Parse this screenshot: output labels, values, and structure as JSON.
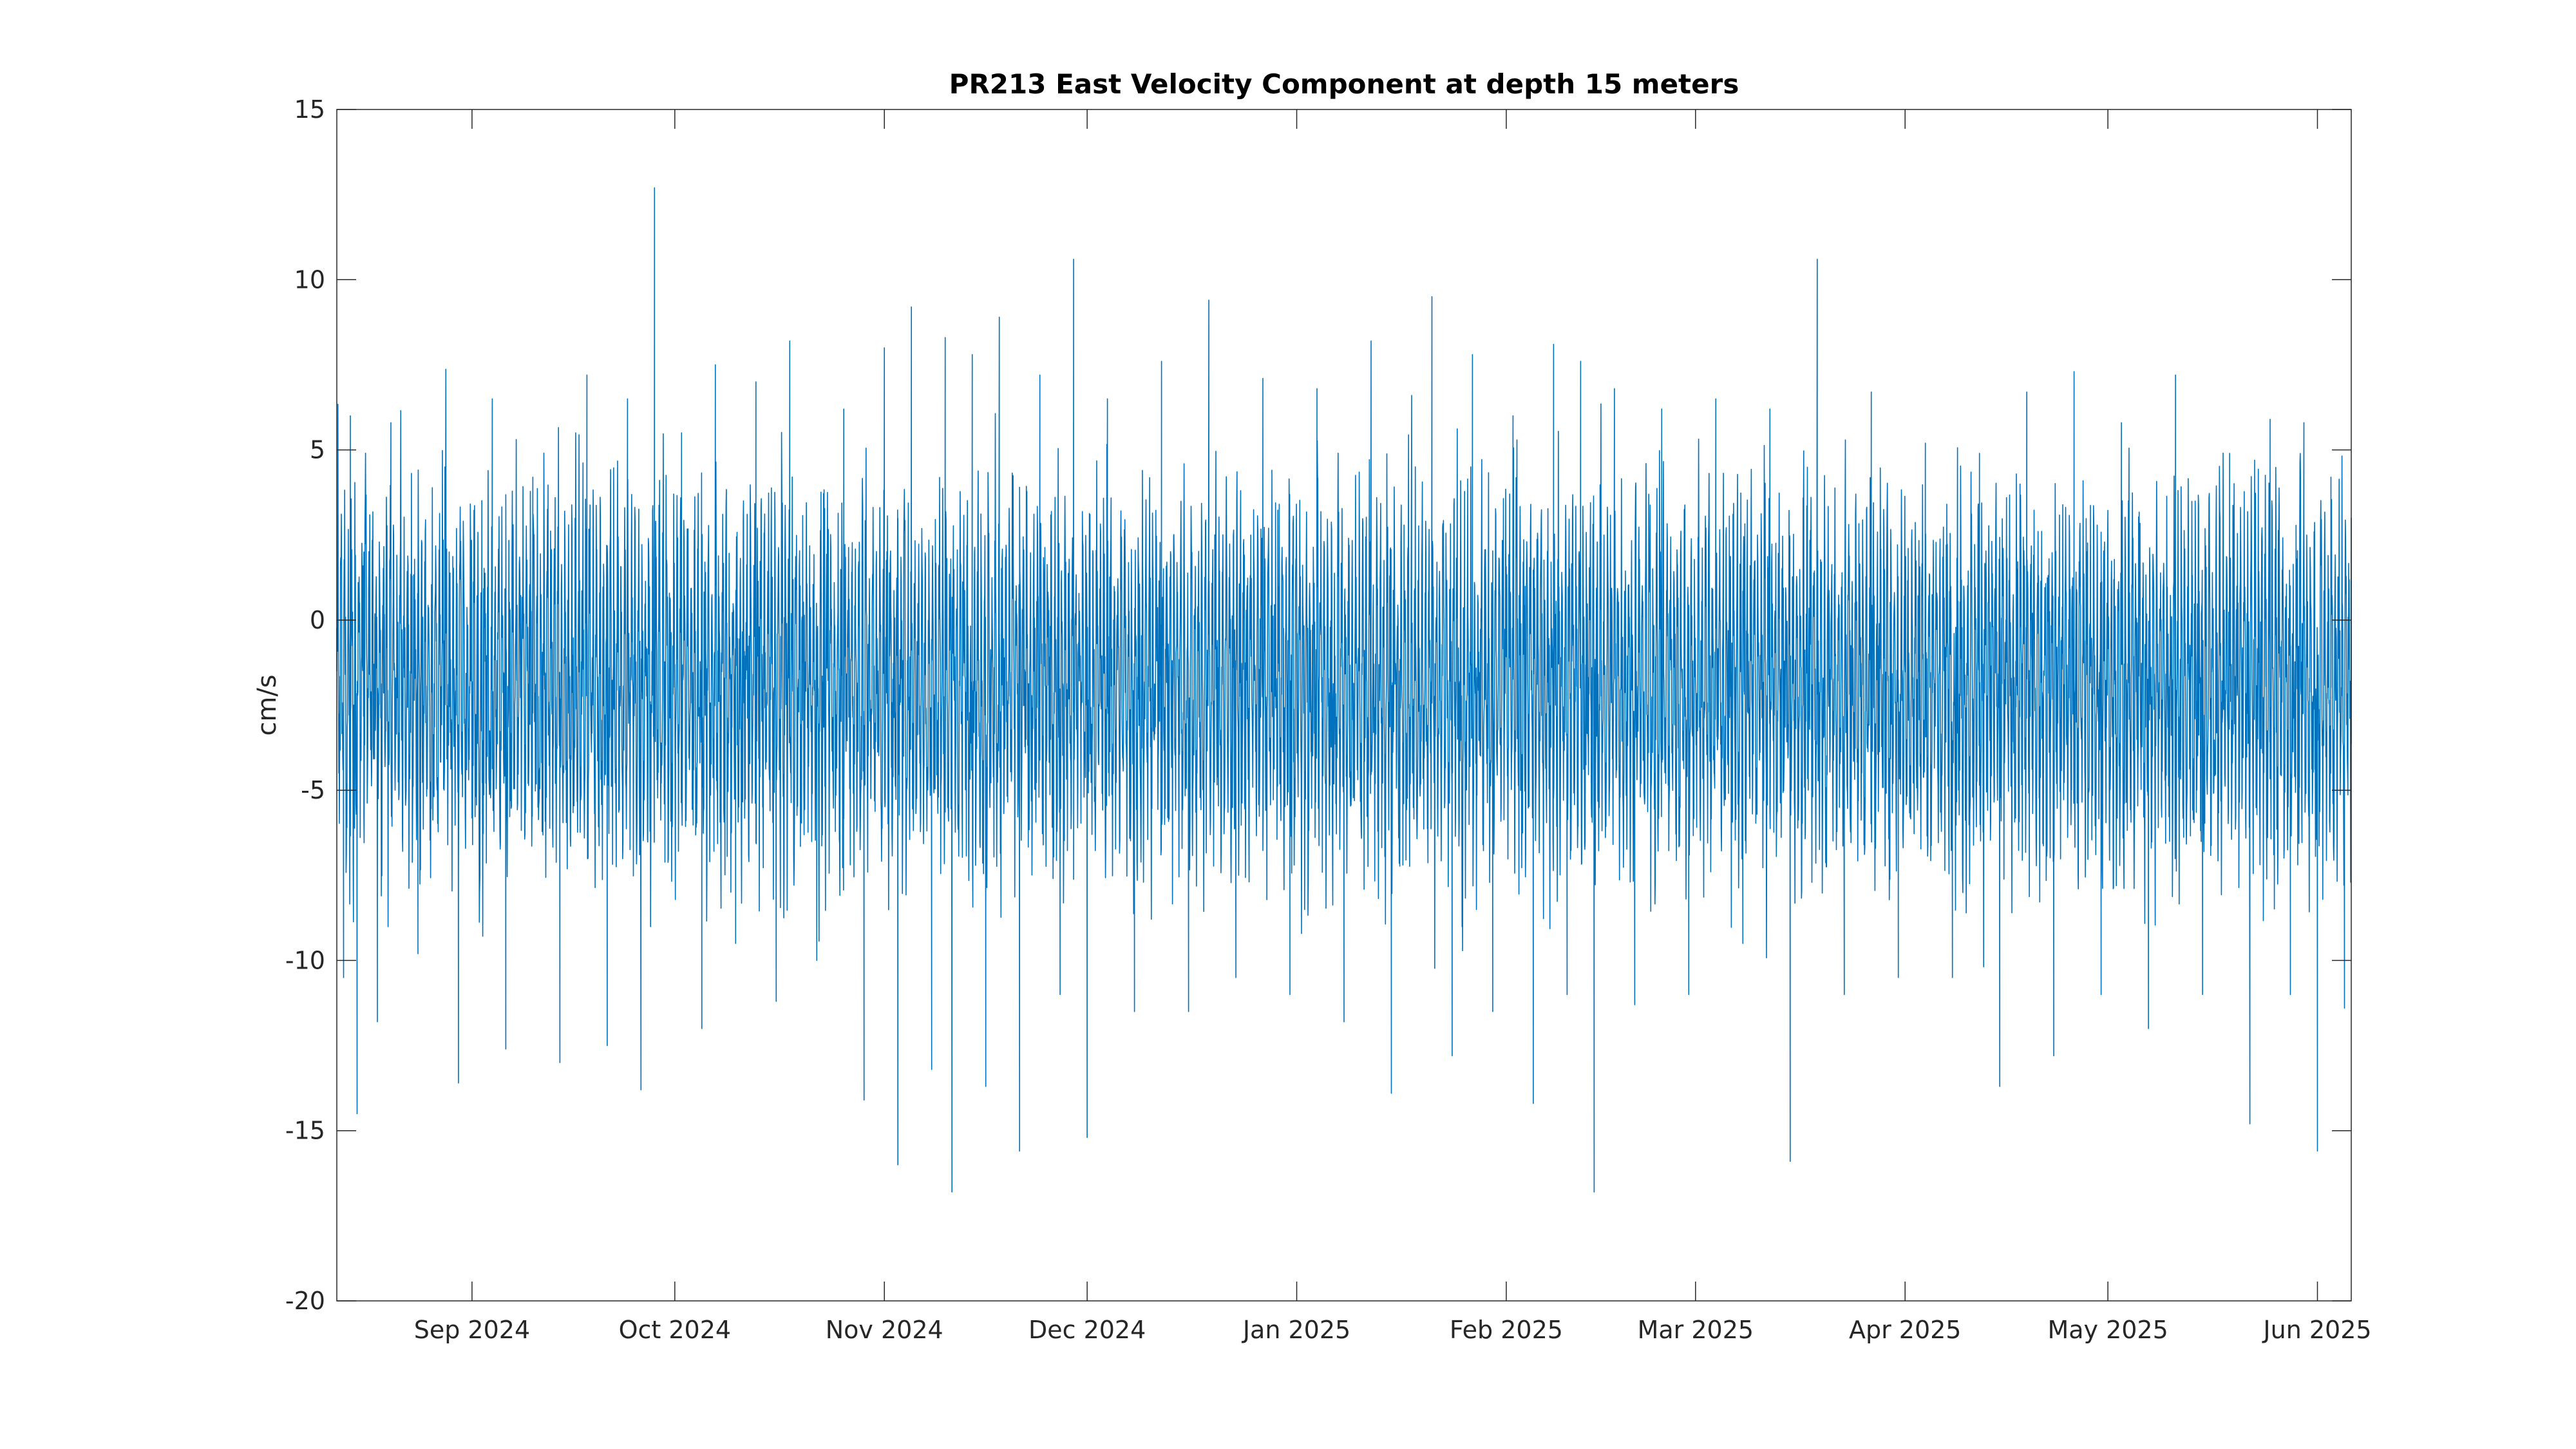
{
  "chart_data": {
    "type": "line",
    "title": "PR213 East Velocity Component at depth 15 meters",
    "xlabel": "",
    "ylabel": "cm/s",
    "xlim": [
      "2024-08-12",
      "2025-06-06"
    ],
    "ylim": [
      -20,
      15
    ],
    "grid": false,
    "legend": "none",
    "x_ticks": [
      {
        "date": "2024-09-01",
        "label": "Sep 2024"
      },
      {
        "date": "2024-10-01",
        "label": "Oct 2024"
      },
      {
        "date": "2024-11-01",
        "label": "Nov 2024"
      },
      {
        "date": "2024-12-01",
        "label": "Dec 2024"
      },
      {
        "date": "2025-01-01",
        "label": "Jan 2025"
      },
      {
        "date": "2025-02-01",
        "label": "Feb 2025"
      },
      {
        "date": "2025-03-01",
        "label": "Mar 2025"
      },
      {
        "date": "2025-04-01",
        "label": "Apr 2025"
      },
      {
        "date": "2025-05-01",
        "label": "May 2025"
      },
      {
        "date": "2025-06-01",
        "label": "Jun 2025"
      }
    ],
    "y_ticks": [
      {
        "value": 15,
        "label": "15"
      },
      {
        "value": 10,
        "label": "10"
      },
      {
        "value": 5,
        "label": "5"
      },
      {
        "value": 0,
        "label": "0"
      },
      {
        "value": -5,
        "label": "-5"
      },
      {
        "value": -10,
        "label": "-10"
      },
      {
        "value": -15,
        "label": "-15"
      },
      {
        "value": -20,
        "label": "-20"
      }
    ],
    "series": [
      {
        "color": "#0072bd",
        "points": [
          [
            "2024-08-12",
            -1.5
          ],
          [
            "2024-08-13",
            -10.5
          ],
          [
            "2024-08-14",
            6.0
          ],
          [
            "2024-08-15",
            -14.5
          ],
          [
            "2024-08-16",
            2.0
          ],
          [
            "2024-08-18",
            -11.8
          ],
          [
            "2024-08-20",
            5.8
          ],
          [
            "2024-08-24",
            -9.8
          ],
          [
            "2024-08-28",
            4.5
          ],
          [
            "2024-08-30",
            -13.6
          ],
          [
            "2024-09-04",
            6.5
          ],
          [
            "2024-09-06",
            -12.6
          ],
          [
            "2024-09-10",
            4.2
          ],
          [
            "2024-09-14",
            -13.0
          ],
          [
            "2024-09-18",
            7.2
          ],
          [
            "2024-09-21",
            -12.5
          ],
          [
            "2024-09-24",
            6.5
          ],
          [
            "2024-09-26",
            -13.8
          ],
          [
            "2024-09-28",
            12.7
          ],
          [
            "2024-09-30",
            -6.0
          ],
          [
            "2024-10-02",
            5.5
          ],
          [
            "2024-10-05",
            -12.0
          ],
          [
            "2024-10-07",
            7.5
          ],
          [
            "2024-10-10",
            -9.5
          ],
          [
            "2024-10-13",
            7.0
          ],
          [
            "2024-10-16",
            -11.2
          ],
          [
            "2024-10-18",
            8.2
          ],
          [
            "2024-10-22",
            -10.0
          ],
          [
            "2024-10-26",
            6.2
          ],
          [
            "2024-10-29",
            -14.1
          ],
          [
            "2024-11-01",
            8.0
          ],
          [
            "2024-11-03",
            -16.0
          ],
          [
            "2024-11-05",
            9.2
          ],
          [
            "2024-11-08",
            -13.2
          ],
          [
            "2024-11-10",
            8.3
          ],
          [
            "2024-11-11",
            -16.8
          ],
          [
            "2024-11-14",
            7.8
          ],
          [
            "2024-11-16",
            -13.7
          ],
          [
            "2024-11-18",
            8.9
          ],
          [
            "2024-11-21",
            -15.6
          ],
          [
            "2024-11-24",
            7.2
          ],
          [
            "2024-11-27",
            -11.0
          ],
          [
            "2024-11-29",
            10.6
          ],
          [
            "2024-12-01",
            -15.2
          ],
          [
            "2024-12-04",
            6.5
          ],
          [
            "2024-12-08",
            -11.5
          ],
          [
            "2024-12-12",
            7.6
          ],
          [
            "2024-12-16",
            -11.5
          ],
          [
            "2024-12-19",
            9.4
          ],
          [
            "2024-12-23",
            -10.5
          ],
          [
            "2024-12-27",
            7.1
          ],
          [
            "2024-12-31",
            -11.0
          ],
          [
            "2025-01-04",
            6.8
          ],
          [
            "2025-01-08",
            -11.8
          ],
          [
            "2025-01-12",
            8.2
          ],
          [
            "2025-01-15",
            -13.9
          ],
          [
            "2025-01-18",
            6.6
          ],
          [
            "2025-01-21",
            9.5
          ],
          [
            "2025-01-24",
            -12.8
          ],
          [
            "2025-01-27",
            7.8
          ],
          [
            "2025-01-30",
            -11.5
          ],
          [
            "2025-02-02",
            6.0
          ],
          [
            "2025-02-05",
            -14.2
          ],
          [
            "2025-02-08",
            8.1
          ],
          [
            "2025-02-10",
            -11.0
          ],
          [
            "2025-02-12",
            7.6
          ],
          [
            "2025-02-14",
            -16.8
          ],
          [
            "2025-02-17",
            6.8
          ],
          [
            "2025-02-20",
            -11.3
          ],
          [
            "2025-02-24",
            6.2
          ],
          [
            "2025-02-28",
            -11.0
          ],
          [
            "2025-03-04",
            6.5
          ],
          [
            "2025-03-08",
            -9.5
          ],
          [
            "2025-03-12",
            6.2
          ],
          [
            "2025-03-15",
            -15.9
          ],
          [
            "2025-03-19",
            10.6
          ],
          [
            "2025-03-23",
            -11.0
          ],
          [
            "2025-03-27",
            6.7
          ],
          [
            "2025-03-31",
            -10.5
          ],
          [
            "2025-04-04",
            5.2
          ],
          [
            "2025-04-08",
            -10.5
          ],
          [
            "2025-04-12",
            4.9
          ],
          [
            "2025-04-15",
            -13.7
          ],
          [
            "2025-04-19",
            6.7
          ],
          [
            "2025-04-23",
            -12.8
          ],
          [
            "2025-04-26",
            7.3
          ],
          [
            "2025-04-30",
            -11.0
          ],
          [
            "2025-05-03",
            5.8
          ],
          [
            "2025-05-07",
            -12.0
          ],
          [
            "2025-05-11",
            7.2
          ],
          [
            "2025-05-15",
            -11.0
          ],
          [
            "2025-05-19",
            4.9
          ],
          [
            "2025-05-22",
            -14.8
          ],
          [
            "2025-05-25",
            5.9
          ],
          [
            "2025-05-28",
            -11.0
          ],
          [
            "2025-05-30",
            5.8
          ],
          [
            "2025-06-01",
            -15.6
          ],
          [
            "2025-06-03",
            4.2
          ],
          [
            "2025-06-05",
            -11.4
          ],
          [
            "2025-06-06",
            3.0
          ]
        ]
      }
    ]
  }
}
